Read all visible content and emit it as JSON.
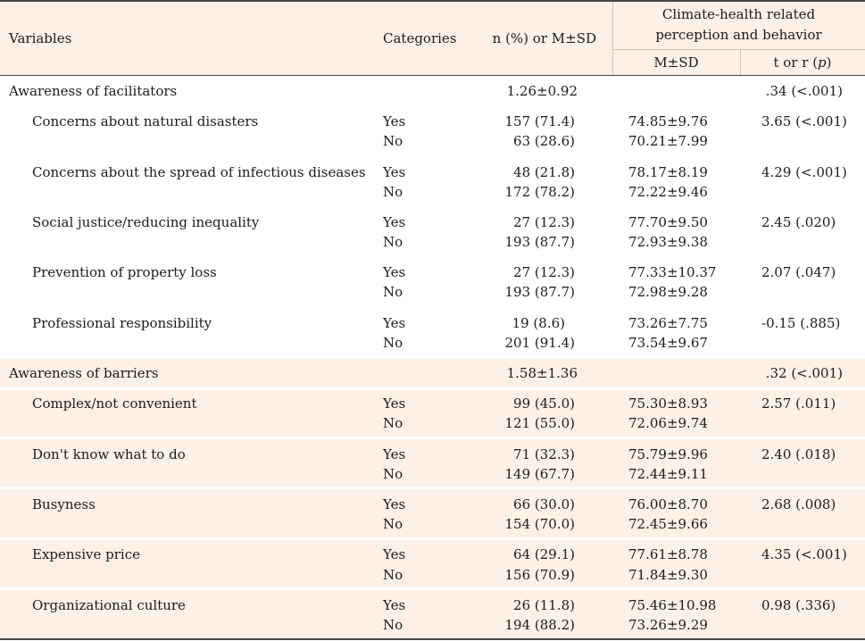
{
  "header": {
    "variables": "Variables",
    "categories": "Categories",
    "n_pct": "n (%) or M±SD",
    "group_line1": "Climate-health related",
    "group_line2": "perception and behavior",
    "msd": "M±SD",
    "test_prefix": "t or r (",
    "test_p": "p",
    "test_suffix": ")"
  },
  "colors": {
    "header_bg": "#fdf0e6",
    "barrier_bg": "#fdf0e6",
    "rule": "#444444"
  },
  "facilitators": {
    "label": "Awareness of facilitators",
    "n": "1.26±0.92",
    "test": ".34 (<.001)",
    "items": [
      {
        "name": "Concerns about natural disasters",
        "cat1": "Yes",
        "n1": "157 (71.4)",
        "m1": "74.85±9.76",
        "test": "3.65 (<.001)",
        "cat2": "No",
        "n2": "63 (28.6)",
        "m2": "70.21±7.99"
      },
      {
        "name": "Concerns about the spread of infectious diseases",
        "cat1": "Yes",
        "n1": "48 (21.8)",
        "m1": "78.17±8.19",
        "test": "4.29 (<.001)",
        "cat2": "No",
        "n2": "172 (78.2)",
        "m2": "72.22±9.46"
      },
      {
        "name": "Social justice/reducing inequality",
        "cat1": "Yes",
        "n1": "27 (12.3)",
        "m1": "77.70±9.50",
        "test": "2.45 (.020)",
        "cat2": "No",
        "n2": "193 (87.7)",
        "m2": "72.93±9.38"
      },
      {
        "name": "Prevention of property loss",
        "cat1": "Yes",
        "n1": "27 (12.3)",
        "m1": "77.33±10.37",
        "test": "2.07 (.047)",
        "cat2": "No",
        "n2": "193 (87.7)",
        "m2": "72.98±9.28"
      },
      {
        "name": "Professional responsibility",
        "cat1": "Yes",
        "n1": "19 (8.6)",
        "m1": "73.26±7.75",
        "test": "-0.15 (.885)",
        "cat2": "No",
        "n2": "201 (91.4)",
        "m2": "73.54±9.67"
      }
    ]
  },
  "barriers": {
    "label": "Awareness of barriers",
    "n": "1.58±1.36",
    "test": ".32 (<.001)",
    "items": [
      {
        "name": "Complex/not convenient",
        "cat1": "Yes",
        "n1": "99 (45.0)",
        "m1": "75.30±8.93",
        "test": "2.57 (.011)",
        "cat2": "No",
        "n2": "121 (55.0)",
        "m2": "72.06±9.74"
      },
      {
        "name": "Don't know what to do",
        "cat1": "Yes",
        "n1": "71 (32.3)",
        "m1": "75.79±9.96",
        "test": "2.40 (.018)",
        "cat2": "No",
        "n2": "149 (67.7)",
        "m2": "72.44±9.11"
      },
      {
        "name": "Busyness",
        "cat1": "Yes",
        "n1": "66 (30.0)",
        "m1": "76.00±8.70",
        "test": "2.68 (.008)",
        "cat2": "No",
        "n2": "154 (70.0)",
        "m2": "72.45±9.66"
      },
      {
        "name": "Expensive price",
        "cat1": "Yes",
        "n1": "64 (29.1)",
        "m1": "77.61±8.78",
        "test": "4.35 (<.001)",
        "cat2": "No",
        "n2": "156 (70.9)",
        "m2": "71.84±9.30"
      },
      {
        "name": "Organizational culture",
        "cat1": "Yes",
        "n1": "26 (11.8)",
        "m1": "75.46±10.98",
        "test": "0.98 (.336)",
        "cat2": "No",
        "n2": "194 (88.2)",
        "m2": "73.26±9.29"
      }
    ]
  }
}
